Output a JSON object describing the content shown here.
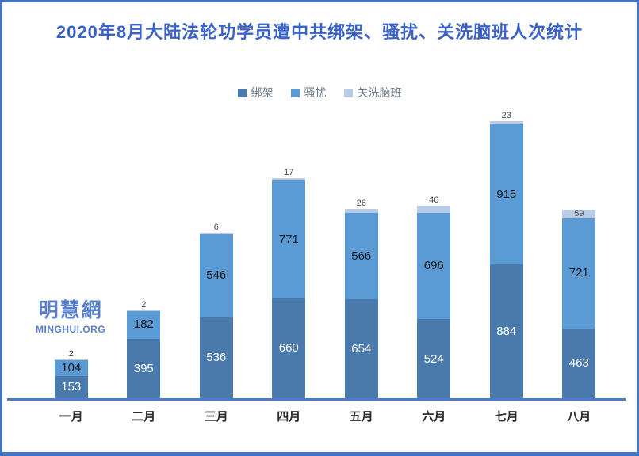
{
  "frame": {
    "border_color": "#4472C4",
    "background": "#FFFFFF"
  },
  "title": {
    "text": "2020年8月大陆法轮功学员遭中共绑架、骚扰、关洗脑班人次统计",
    "color": "#3A62C8"
  },
  "watermark": {
    "cjk": "明慧網",
    "latin": "MINGHUI.ORG",
    "color": "#4673C8"
  },
  "chart_data": {
    "type": "bar",
    "subtype": "stacked",
    "title": "2020年8月大陆法轮功学员遭中共绑架、骚扰、关洗脑班人次统计",
    "categories": [
      "一月",
      "二月",
      "三月",
      "四月",
      "五月",
      "六月",
      "七月",
      "八月"
    ],
    "series": [
      {
        "name": "绑架",
        "color": "#4A79AC",
        "label_color": "#FFFFFF",
        "values": [
          153,
          395,
          536,
          660,
          654,
          524,
          884,
          463
        ]
      },
      {
        "name": "骚扰",
        "color": "#5B9BD5",
        "label_color": "#1A1A1A",
        "values": [
          104,
          182,
          546,
          771,
          566,
          696,
          915,
          721
        ]
      },
      {
        "name": "关洗脑班",
        "color": "#B9CCE7",
        "label_color": "#4A4A4A",
        "values": [
          2,
          2,
          6,
          17,
          26,
          46,
          23,
          59
        ]
      }
    ],
    "totals": [
      259,
      579,
      1088,
      1448,
      1246,
      1266,
      1822,
      1243
    ],
    "ylim": [
      0,
      1822
    ],
    "grid": false,
    "legend_position": "top",
    "axis": {
      "baseline_color": "#4C7BC8"
    }
  }
}
